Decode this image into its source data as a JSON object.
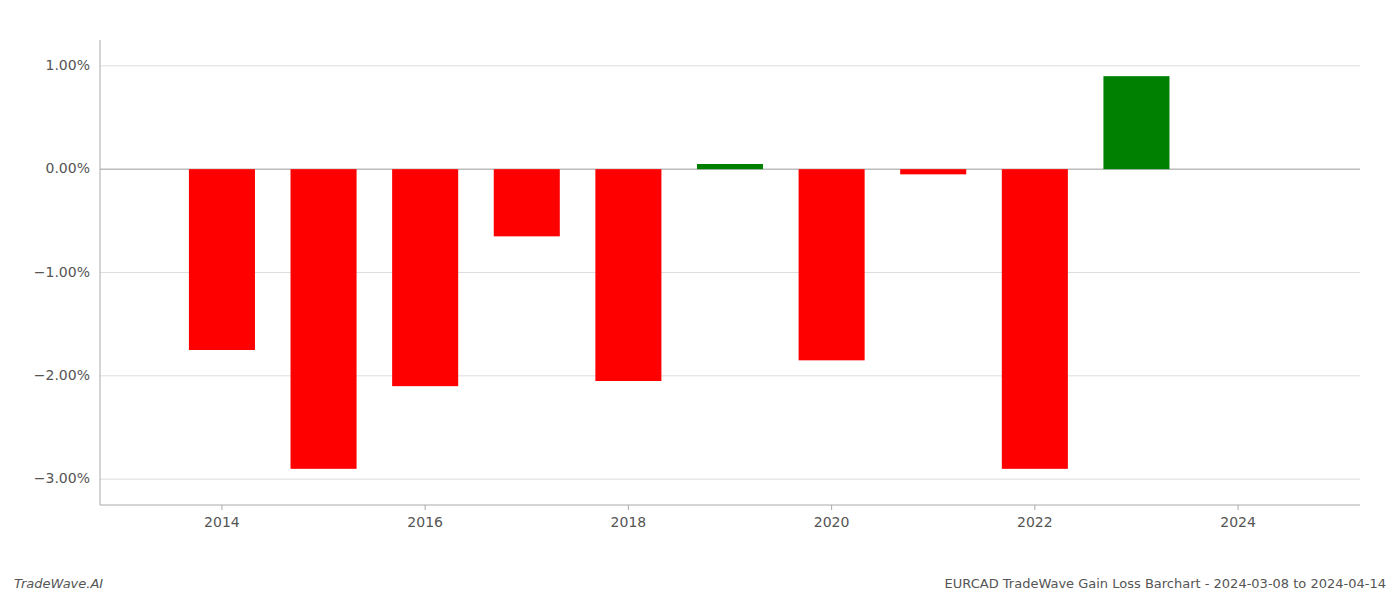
{
  "chart_data": {
    "type": "bar",
    "x": [
      2014,
      2015,
      2016,
      2017,
      2018,
      2019,
      2020,
      2021,
      2022,
      2023
    ],
    "values": [
      -1.75,
      -2.9,
      -2.1,
      -0.65,
      -2.05,
      0.05,
      -1.85,
      -0.05,
      -2.9,
      0.9
    ],
    "colors": [
      "red",
      "red",
      "red",
      "red",
      "red",
      "green",
      "red",
      "red",
      "red",
      "green"
    ],
    "xlim": [
      2012.8,
      2025.2
    ],
    "xticks": [
      2014,
      2016,
      2018,
      2020,
      2022,
      2024
    ],
    "ylim": [
      -3.25,
      1.25
    ],
    "yticks": [
      {
        "value": -3.0,
        "label": "−3.00%"
      },
      {
        "value": -2.0,
        "label": "−2.00%"
      },
      {
        "value": -1.0,
        "label": "−1.00%"
      },
      {
        "value": 0.0,
        "label": "0.00%"
      },
      {
        "value": 1.0,
        "label": "1.00%"
      }
    ],
    "grid": true,
    "annotations": [
      "TradeWave.AI",
      "EURCAD TradeWave Gain Loss Barchart - 2024-03-08 to 2024-04-14"
    ]
  }
}
